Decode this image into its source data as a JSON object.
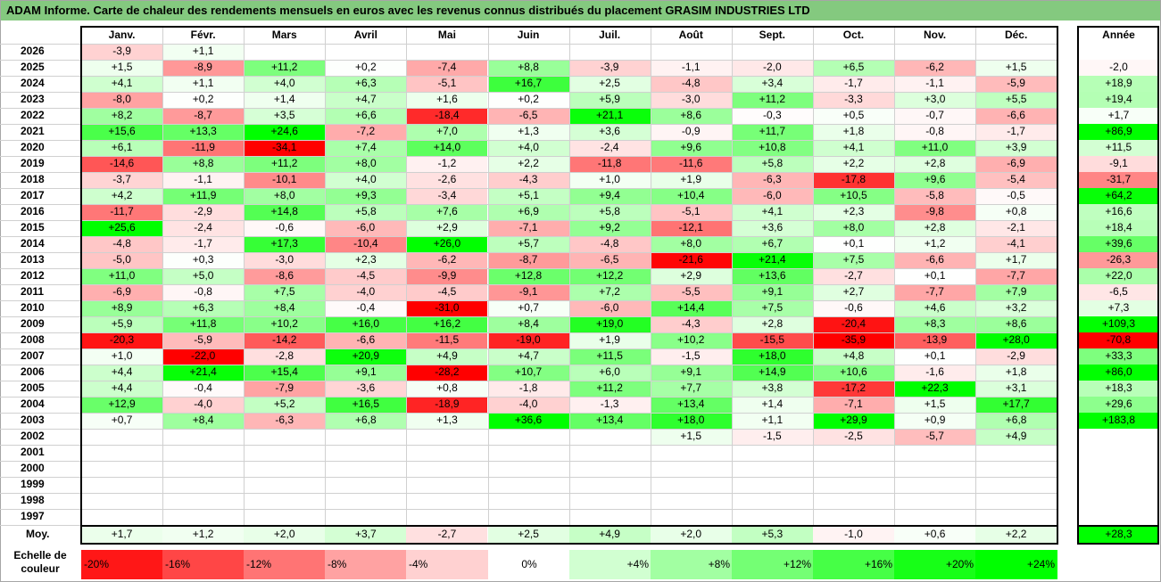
{
  "title": "ADAM Informe. Carte de chaleur des rendements mensuels en euros avec les revenus connus distribués du placement GRASIM INDUSTRIES LTD",
  "chart_data": {
    "type": "heatmap",
    "months": [
      "Janv.",
      "Févr.",
      "Mars",
      "Avril",
      "Mai",
      "Juin",
      "Juil.",
      "Août",
      "Sept.",
      "Oct.",
      "Nov.",
      "Déc."
    ],
    "year_header": "Année",
    "rows": [
      {
        "year": "2026",
        "values": [
          -3.9,
          1.1,
          null,
          null,
          null,
          null,
          null,
          null,
          null,
          null,
          null,
          null
        ],
        "annual": null
      },
      {
        "year": "2025",
        "values": [
          1.5,
          -8.9,
          11.2,
          0.2,
          -7.4,
          8.8,
          -3.9,
          -1.1,
          -2.0,
          6.5,
          -6.2,
          1.5
        ],
        "annual": -2.0
      },
      {
        "year": "2024",
        "values": [
          4.1,
          1.1,
          4.0,
          6.3,
          -5.1,
          16.7,
          2.5,
          -4.8,
          3.4,
          -1.7,
          -1.1,
          -5.9
        ],
        "annual": 18.9
      },
      {
        "year": "2023",
        "values": [
          -8.0,
          0.2,
          1.4,
          4.7,
          1.6,
          0.2,
          5.9,
          -3.0,
          11.2,
          -3.3,
          3.0,
          5.5
        ],
        "annual": 19.4
      },
      {
        "year": "2022",
        "values": [
          8.2,
          -8.7,
          3.5,
          6.6,
          -18.4,
          -6.5,
          21.1,
          8.6,
          -0.3,
          0.5,
          -0.7,
          -6.6
        ],
        "annual": 1.7
      },
      {
        "year": "2021",
        "values": [
          15.6,
          13.3,
          24.6,
          -7.2,
          7.0,
          1.3,
          3.6,
          -0.9,
          11.7,
          1.8,
          -0.8,
          -1.7
        ],
        "annual": 86.9
      },
      {
        "year": "2020",
        "values": [
          6.1,
          -11.9,
          -34.1,
          7.4,
          14.0,
          4.0,
          -2.4,
          9.6,
          10.8,
          4.1,
          11.0,
          3.9
        ],
        "annual": 11.5
      },
      {
        "year": "2019",
        "values": [
          -14.6,
          8.8,
          11.2,
          8.0,
          -1.2,
          2.2,
          -11.8,
          -11.6,
          5.8,
          2.2,
          2.8,
          -6.9
        ],
        "annual": -9.1
      },
      {
        "year": "2018",
        "values": [
          -3.7,
          -1.1,
          -10.1,
          4.0,
          -2.6,
          -4.3,
          1.0,
          1.9,
          -6.3,
          -17.8,
          9.6,
          -5.4
        ],
        "annual": -31.7
      },
      {
        "year": "2017",
        "values": [
          4.2,
          11.9,
          8.0,
          9.3,
          -3.4,
          5.1,
          9.4,
          10.4,
          -6.0,
          10.5,
          -5.8,
          -0.5
        ],
        "annual": 64.2
      },
      {
        "year": "2016",
        "values": [
          -11.7,
          -2.9,
          14.8,
          5.8,
          7.6,
          6.9,
          5.8,
          -5.1,
          4.1,
          2.3,
          -9.8,
          0.8
        ],
        "annual": 16.6
      },
      {
        "year": "2015",
        "values": [
          25.6,
          -2.4,
          -0.6,
          -6.0,
          2.9,
          -7.1,
          9.2,
          -12.1,
          3.6,
          8.0,
          2.8,
          -2.1
        ],
        "annual": 18.4
      },
      {
        "year": "2014",
        "values": [
          -4.8,
          -1.7,
          17.3,
          -10.4,
          26.0,
          5.7,
          -4.8,
          8.0,
          6.7,
          0.1,
          1.2,
          -4.1
        ],
        "annual": 39.6
      },
      {
        "year": "2013",
        "values": [
          -5.0,
          0.3,
          -3.0,
          2.3,
          -6.2,
          -8.7,
          -6.5,
          -21.6,
          21.4,
          7.5,
          -6.6,
          1.7
        ],
        "annual": -26.3
      },
      {
        "year": "2012",
        "values": [
          11.0,
          5.0,
          -8.6,
          -4.5,
          -9.9,
          12.8,
          12.2,
          2.9,
          13.6,
          -2.7,
          0.1,
          -7.7
        ],
        "annual": 22.0
      },
      {
        "year": "2011",
        "values": [
          -6.9,
          -0.8,
          7.5,
          -4.0,
          -4.5,
          -9.1,
          7.2,
          -5.5,
          9.1,
          2.7,
          -7.7,
          7.9
        ],
        "annual": -6.5
      },
      {
        "year": "2010",
        "values": [
          8.9,
          6.3,
          8.4,
          -0.4,
          -31.0,
          0.7,
          -6.0,
          14.4,
          7.5,
          -0.6,
          4.6,
          3.2
        ],
        "annual": 7.3
      },
      {
        "year": "2009",
        "values": [
          5.9,
          11.8,
          10.2,
          16.0,
          16.2,
          8.4,
          19.0,
          -4.3,
          2.8,
          -20.4,
          8.3,
          8.6
        ],
        "annual": 109.3
      },
      {
        "year": "2008",
        "values": [
          -20.3,
          -5.9,
          -14.2,
          -6.6,
          -11.5,
          -19.0,
          1.9,
          10.2,
          -15.5,
          -35.9,
          -13.9,
          28.0
        ],
        "annual": -70.8
      },
      {
        "year": "2007",
        "values": [
          1.0,
          -22.0,
          -2.8,
          20.9,
          4.9,
          4.7,
          11.5,
          -1.5,
          18.0,
          4.8,
          0.1,
          -2.9
        ],
        "annual": 33.3
      },
      {
        "year": "2006",
        "values": [
          4.4,
          21.4,
          15.4,
          9.1,
          -28.2,
          10.7,
          6.0,
          9.1,
          14.9,
          10.6,
          -1.6,
          1.8
        ],
        "annual": 86.0
      },
      {
        "year": "2005",
        "values": [
          4.4,
          -0.4,
          -7.9,
          -3.6,
          0.8,
          -1.8,
          11.2,
          7.7,
          3.8,
          -17.2,
          22.3,
          3.1
        ],
        "annual": 18.3
      },
      {
        "year": "2004",
        "values": [
          12.9,
          -4.0,
          5.2,
          16.5,
          -18.9,
          -4.0,
          -1.3,
          13.4,
          1.4,
          -7.1,
          1.5,
          17.7
        ],
        "annual": 29.6
      },
      {
        "year": "2003",
        "values": [
          0.7,
          8.4,
          -6.3,
          6.8,
          1.3,
          36.6,
          13.4,
          18.0,
          1.1,
          29.9,
          0.9,
          6.8
        ],
        "annual": 183.8
      },
      {
        "year": "2002",
        "values": [
          null,
          null,
          null,
          null,
          null,
          null,
          null,
          1.5,
          -1.5,
          -2.5,
          -5.7,
          4.9
        ],
        "annual": null
      },
      {
        "year": "2001",
        "values": [
          null,
          null,
          null,
          null,
          null,
          null,
          null,
          null,
          null,
          null,
          null,
          null
        ],
        "annual": null
      },
      {
        "year": "2000",
        "values": [
          null,
          null,
          null,
          null,
          null,
          null,
          null,
          null,
          null,
          null,
          null,
          null
        ],
        "annual": null
      },
      {
        "year": "1999",
        "values": [
          null,
          null,
          null,
          null,
          null,
          null,
          null,
          null,
          null,
          null,
          null,
          null
        ],
        "annual": null
      },
      {
        "year": "1998",
        "values": [
          null,
          null,
          null,
          null,
          null,
          null,
          null,
          null,
          null,
          null,
          null,
          null
        ],
        "annual": null
      },
      {
        "year": "1997",
        "values": [
          null,
          null,
          null,
          null,
          null,
          null,
          null,
          null,
          null,
          null,
          null,
          null
        ],
        "annual": null
      }
    ],
    "average": {
      "label": "Moy.",
      "values": [
        1.7,
        1.2,
        2.0,
        3.7,
        -2.7,
        2.5,
        4.9,
        2.0,
        5.3,
        -1.0,
        0.6,
        2.2
      ],
      "annual": 28.3
    },
    "color_scale": {
      "label": "Echelle de couleur",
      "steps": [
        "-20%",
        "-16%",
        "-12%",
        "-8%",
        "-4%",
        "0%",
        "+4%",
        "+8%",
        "+12%",
        "+16%",
        "+20%",
        "+24%"
      ],
      "negative_color": "#ff0000",
      "positive_color": "#00ff00",
      "neutral_color": "#ffffff"
    }
  }
}
